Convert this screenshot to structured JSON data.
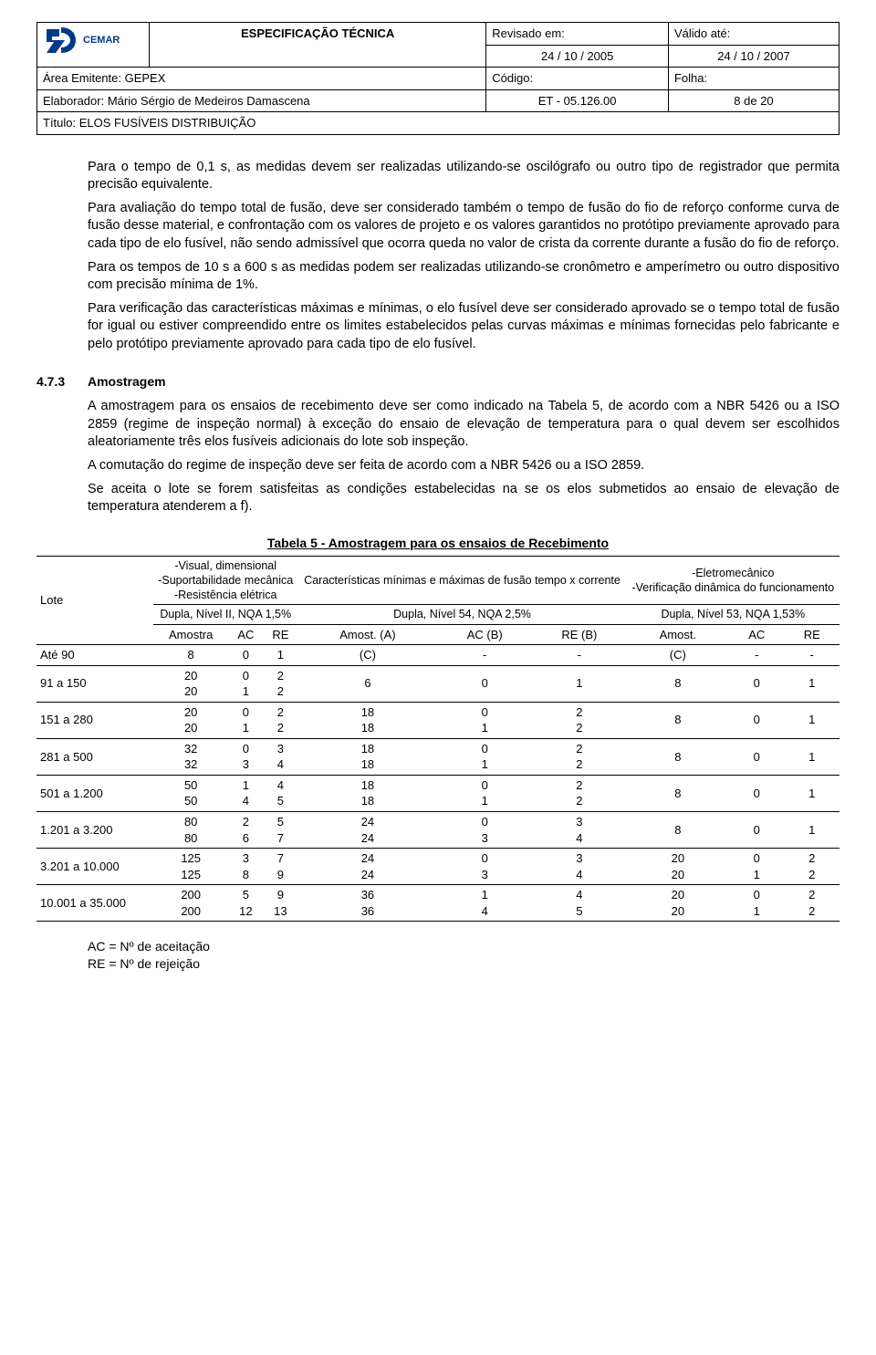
{
  "header": {
    "logo_text": "CEMAR",
    "spec_title": "ESPECIFICAÇÃO TÉCNICA",
    "revisado_label": "Revisado em:",
    "revisado_value": "24 / 10 / 2005",
    "valido_label": "Válido até:",
    "valido_value": "24 / 10 / 2007",
    "area_label": "Área Emitente: GEPEX",
    "codigo_label": "Código:",
    "folha_label": "Folha:",
    "elaborador_label": "Elaborador: Mário Sérgio de Medeiros Damascena",
    "codigo_value": "ET - 05.126.00",
    "folha_value": "8 de 20",
    "titulo_label": "Título: ELOS FUSÍVEIS DISTRIBUIÇÃO"
  },
  "body": {
    "p1": "Para o tempo de 0,1 s, as medidas devem ser realizadas utilizando-se oscilógrafo ou outro tipo de registrador que permita precisão equivalente.",
    "p2": "Para avaliação do tempo total de fusão, deve ser considerado também o tempo de fusão do fio de reforço conforme curva de fusão desse material, e confrontação com os valores de projeto e os valores garantidos no protótipo previamente aprovado para cada tipo de elo fusível, não sendo admissível que ocorra queda no valor de crista da corrente durante a fusão do fio de reforço.",
    "p3": "Para os tempos de 10 s a 600 s as medidas podem ser realizadas utilizando-se cronômetro e amperímetro ou outro dispositivo com precisão mínima de 1%.",
    "p4": "Para verificação das características máximas e mínimas, o elo fusível deve ser considerado aprovado se o tempo total de fusão for igual ou estiver compreendido entre os limites estabelecidos pelas curvas máximas e mínimas fornecidas pelo fabricante e pelo protótipo previamente aprovado para cada tipo de elo fusível."
  },
  "section": {
    "num": "4.7.3",
    "title": "Amostragem",
    "p1": "A amostragem para os ensaios de recebimento deve ser como indicado na Tabela 5, de acordo com a NBR 5426 ou a ISO 2859 (regime de inspeção normal) à exceção do ensaio de elevação de temperatura para o qual devem ser escolhidos aleatoriamente três elos fusíveis adicionais do lote sob inspeção.",
    "p2": "A comutação do regime de inspeção deve ser feita de acordo com a NBR 5426 ou a ISO 2859.",
    "p3": "Se aceita o lote se forem satisfeitas as condições estabelecidas na se os elos submetidos ao ensaio de elevação de temperatura atenderem a f)."
  },
  "table5": {
    "caption": "Tabela 5 - Amostragem para os ensaios de Recebimento",
    "lote_label": "Lote",
    "group1": {
      "lines": "-Visual, dimensional\n-Suportabilidade mecânica\n-Resistência elétrica",
      "plan": "Dupla, Nível II, NQA 1,5%",
      "c1": "Amostra",
      "c2": "AC",
      "c3": "RE"
    },
    "group2": {
      "lines": "Características mínimas e máximas de fusão tempo x corrente",
      "plan": "Dupla, Nível 54, NQA 2,5%",
      "c1": "Amost. (A)",
      "c2": "AC (B)",
      "c3": "RE (B)"
    },
    "group3": {
      "lines": "-Eletromecânico\n-Verificação dinâmica do funcionamento",
      "plan": "Dupla, Nível 53, NQA 1,53%",
      "c1": "Amost.",
      "c2": "AC",
      "c3": "RE"
    },
    "rows": [
      {
        "lote": "Até 90",
        "g1a": "8",
        "g1b": "0",
        "g1c": "1",
        "g2a": "(C)",
        "g2b": "-",
        "g2c": "-",
        "g3a": "(C)",
        "g3b": "-",
        "g3c": "-"
      },
      {
        "lote": "91 a 150",
        "g1a": "20\n20",
        "g1b": "0\n1",
        "g1c": "2\n2",
        "g2a": "6",
        "g2b": "0",
        "g2c": "1",
        "g3a": "8",
        "g3b": "0",
        "g3c": "1"
      },
      {
        "lote": "151 a 280",
        "g1a": "20\n20",
        "g1b": "0\n1",
        "g1c": "2\n2",
        "g2a": "18\n18",
        "g2b": "0\n1",
        "g2c": "2\n2",
        "g3a": "8",
        "g3b": "0",
        "g3c": "1"
      },
      {
        "lote": "281 a 500",
        "g1a": "32\n32",
        "g1b": "0\n3",
        "g1c": "3\n4",
        "g2a": "18\n18",
        "g2b": "0\n1",
        "g2c": "2\n2",
        "g3a": "8",
        "g3b": "0",
        "g3c": "1"
      },
      {
        "lote": "501 a 1.200",
        "g1a": "50\n50",
        "g1b": "1\n4",
        "g1c": "4\n5",
        "g2a": "18\n18",
        "g2b": "0\n1",
        "g2c": "2\n2",
        "g3a": "8",
        "g3b": "0",
        "g3c": "1"
      },
      {
        "lote": "1.201 a 3.200",
        "g1a": "80\n80",
        "g1b": "2\n6",
        "g1c": "5\n7",
        "g2a": "24\n24",
        "g2b": "0\n3",
        "g2c": "3\n4",
        "g3a": "8",
        "g3b": "0",
        "g3c": "1"
      },
      {
        "lote": "3.201 a 10.000",
        "g1a": "125\n125",
        "g1b": "3\n8",
        "g1c": "7\n9",
        "g2a": "24\n24",
        "g2b": "0\n3",
        "g2c": "3\n4",
        "g3a": "20\n20",
        "g3b": "0\n1",
        "g3c": "2\n2"
      },
      {
        "lote": "10.001 a 35.000",
        "g1a": "200\n200",
        "g1b": "5\n12",
        "g1c": "9\n13",
        "g2a": "36\n36",
        "g2b": "1\n4",
        "g2c": "4\n5",
        "g3a": "20\n20",
        "g3b": "0\n1",
        "g3c": "2\n2"
      }
    ]
  },
  "notes": {
    "n1": "AC = Nº de aceitação",
    "n2": "RE = Nº de rejeição"
  }
}
